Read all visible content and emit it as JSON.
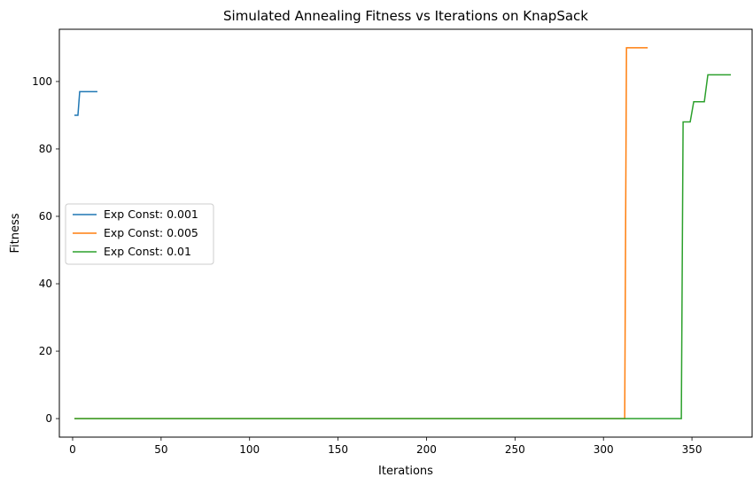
{
  "chart_data": {
    "type": "line",
    "title": "Simulated Annealing Fitness vs Iterations on KnapSack",
    "xlabel": "Iterations",
    "ylabel": "Fitness",
    "xlim": [
      -7.5,
      384
    ],
    "ylim": [
      -5.5,
      115.5
    ],
    "xticks": [
      0,
      50,
      100,
      150,
      200,
      250,
      300,
      350
    ],
    "yticks": [
      0,
      20,
      40,
      60,
      80,
      100
    ],
    "grid": false,
    "legend_position": "center-left",
    "series": [
      {
        "name": "Exp Const: 0.001",
        "color": "#1f77b4",
        "points": [
          [
            1,
            90
          ],
          [
            2,
            90
          ],
          [
            3,
            90
          ],
          [
            4,
            97
          ],
          [
            5,
            97
          ],
          [
            14,
            97
          ]
        ]
      },
      {
        "name": "Exp Const: 0.005",
        "color": "#ff7f0e",
        "points": [
          [
            1,
            0
          ],
          [
            312,
            0
          ],
          [
            313,
            110
          ],
          [
            325,
            110
          ]
        ]
      },
      {
        "name": "Exp Const: 0.01",
        "color": "#2ca02c",
        "points": [
          [
            1,
            0
          ],
          [
            344,
            0
          ],
          [
            345,
            88
          ],
          [
            349,
            88
          ],
          [
            351,
            94
          ],
          [
            357,
            94
          ],
          [
            359,
            102
          ],
          [
            372,
            102
          ]
        ]
      }
    ]
  }
}
